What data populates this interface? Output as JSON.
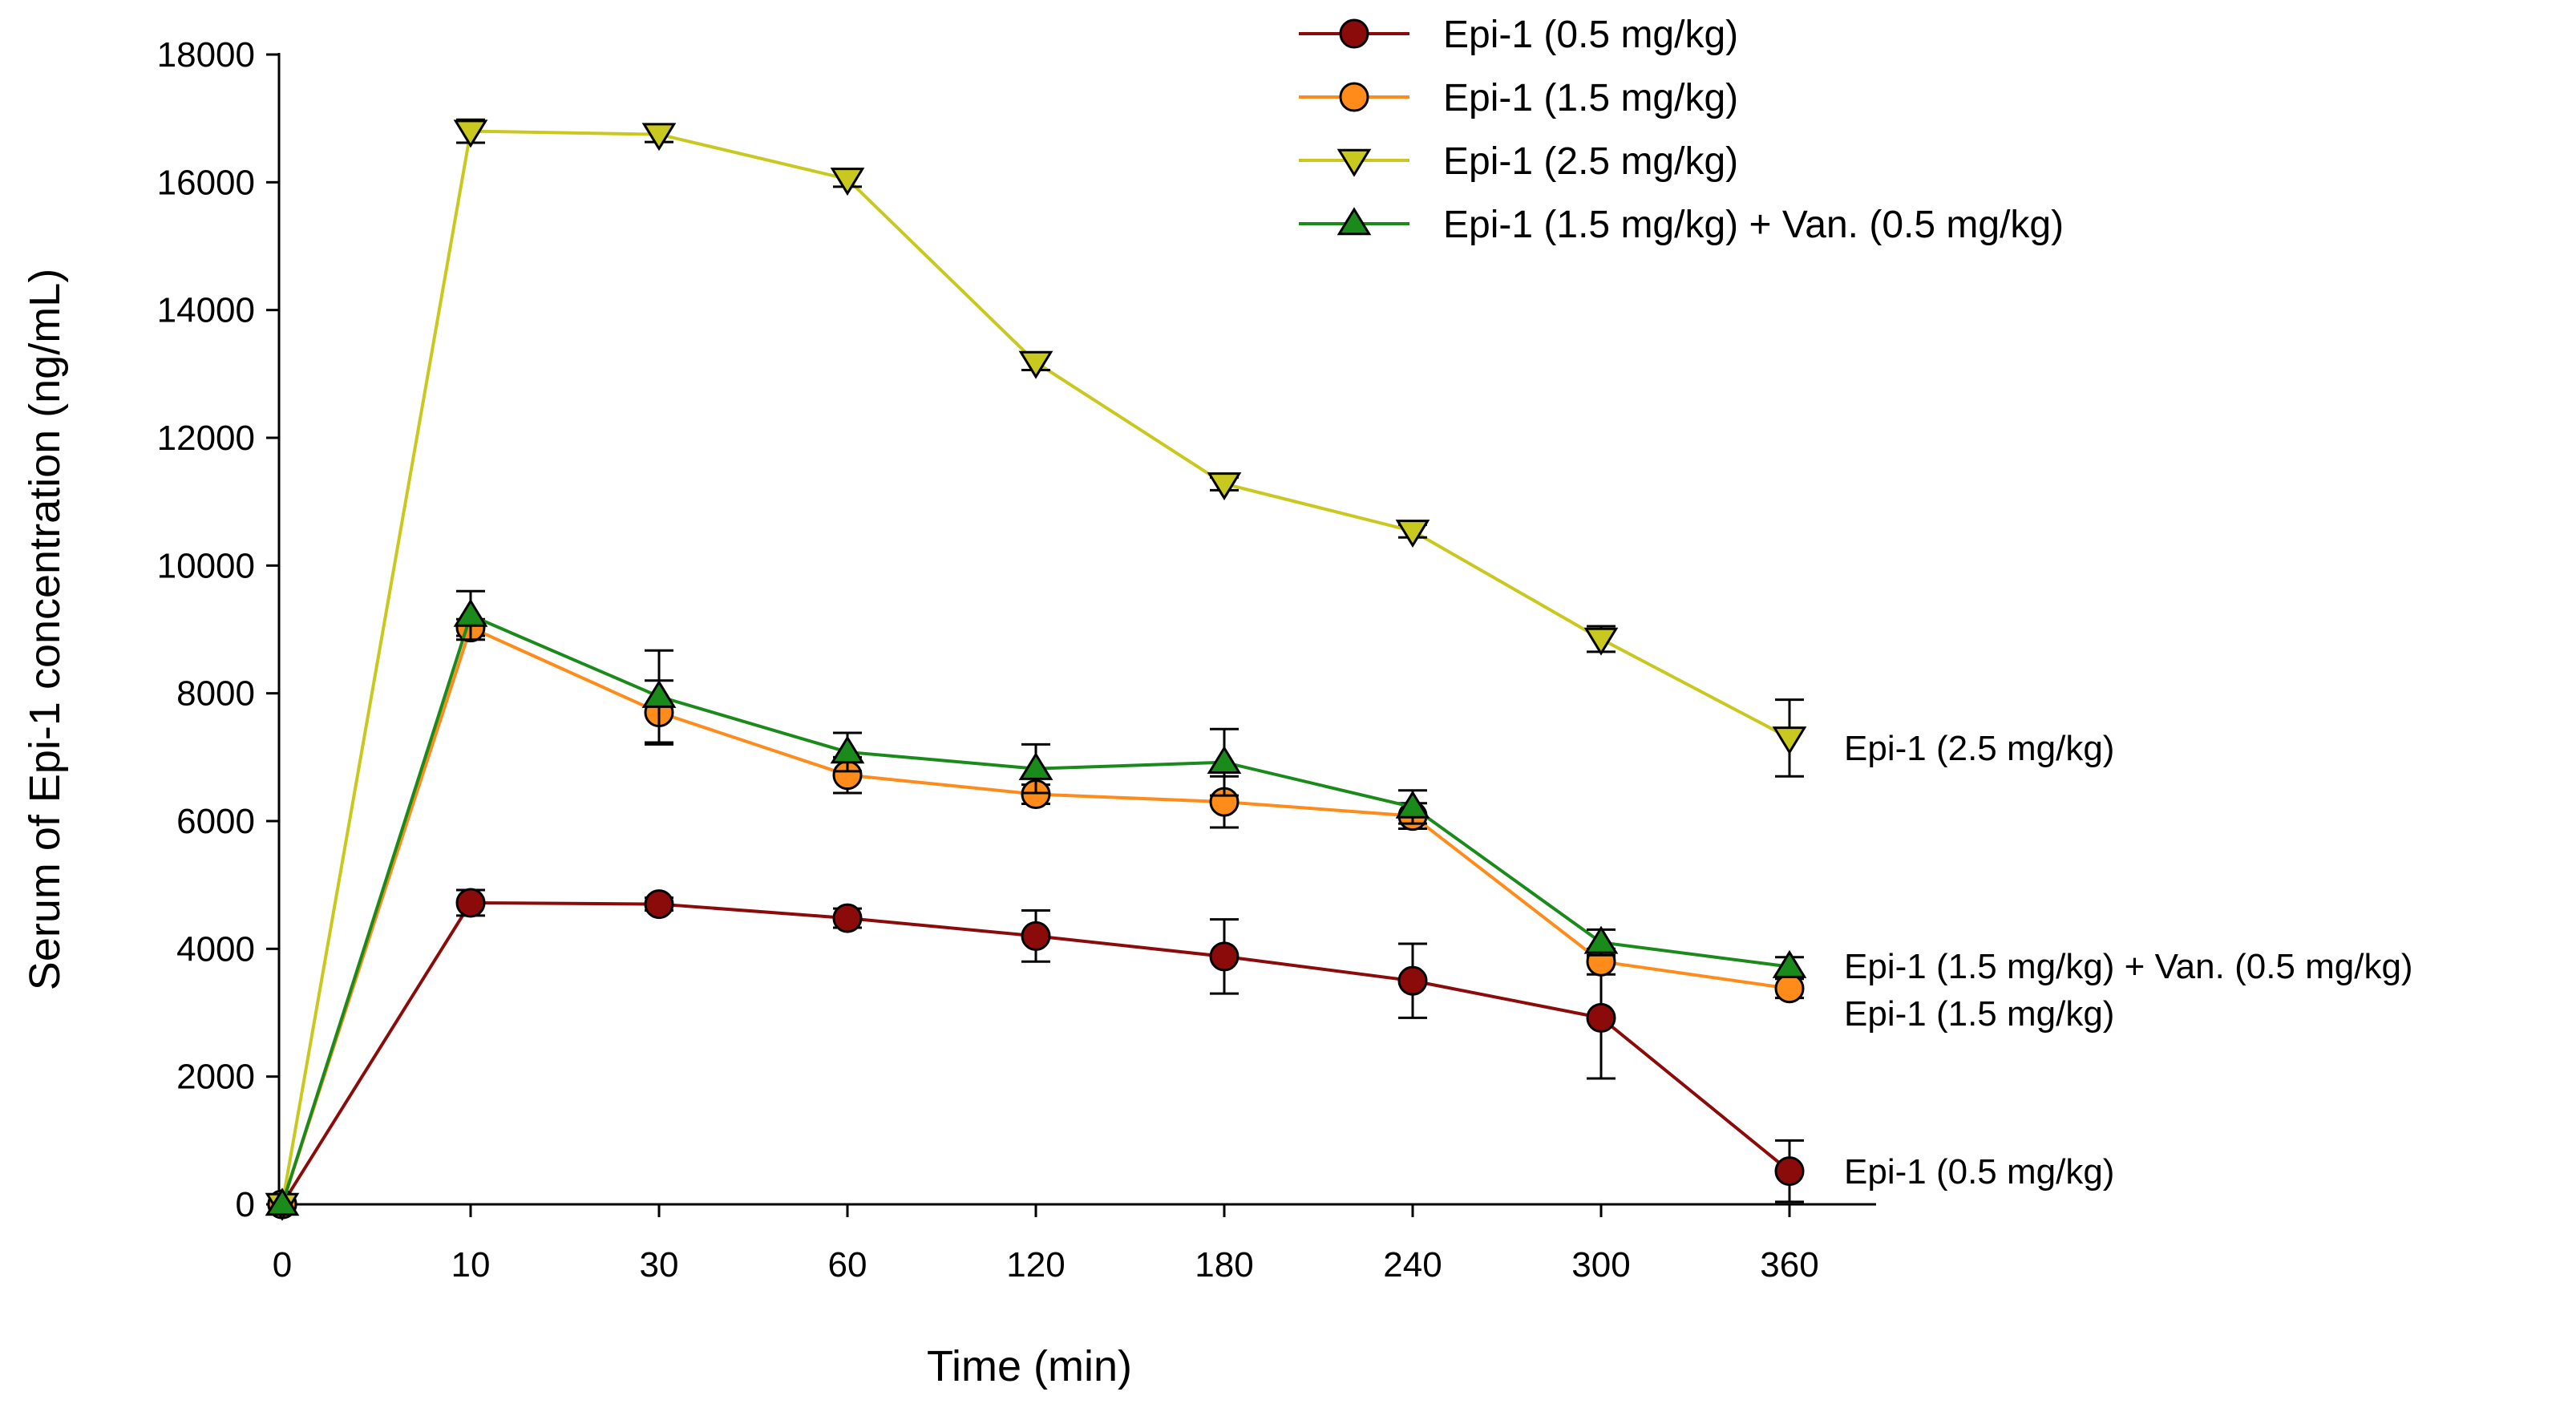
{
  "chart_data": {
    "type": "line",
    "title": "",
    "xlabel": "Time (min)",
    "ylabel": "Serum of Epi-1 concentration (ng/mL)",
    "categories": [
      "0",
      "10",
      "30",
      "60",
      "120",
      "180",
      "240",
      "300",
      "360"
    ],
    "ylim": [
      0,
      18000
    ],
    "yticks": [
      0,
      2000,
      4000,
      6000,
      8000,
      10000,
      12000,
      14000,
      16000,
      18000
    ],
    "grid": false,
    "legend": "top-right",
    "series": [
      {
        "name": "Epi-1 (0.5 mg/kg)",
        "color": "#8b0a0a",
        "marker": "circle",
        "values": [
          0,
          4720,
          4700,
          4480,
          4200,
          3880,
          3500,
          2920,
          520
        ],
        "errors": [
          0,
          200,
          100,
          150,
          400,
          580,
          580,
          950,
          480
        ],
        "end_label": "Epi-1 (0.5 mg/kg)"
      },
      {
        "name": "Epi-1 (1.5 mg/kg)",
        "color": "#ff8c1a",
        "marker": "circle",
        "values": [
          0,
          9030,
          7700,
          6720,
          6420,
          6300,
          6080,
          3800,
          3380
        ],
        "errors": [
          0,
          130,
          500,
          280,
          150,
          400,
          200,
          200,
          150
        ],
        "end_label": "Epi-1 (1.5 mg/kg)"
      },
      {
        "name": "Epi-1 (2.5 mg/kg)",
        "color": "#c8c81e",
        "marker": "triangle-down",
        "values": [
          0,
          16800,
          16750,
          16050,
          13180,
          11280,
          10540,
          8850,
          7300
        ],
        "errors": [
          0,
          180,
          120,
          120,
          120,
          100,
          100,
          200,
          600
        ],
        "end_label": "Epi-1 (2.5 mg/kg)"
      },
      {
        "name": "Epi-1 (1.5 mg/kg) + Van. (0.5 mg/kg)",
        "color": "#1a8a1a",
        "marker": "triangle-up",
        "values": [
          0,
          9220,
          7950,
          7080,
          6820,
          6920,
          6220,
          4100,
          3720
        ],
        "errors": [
          0,
          380,
          720,
          300,
          380,
          520,
          260,
          200,
          150
        ],
        "end_label": "Epi-1 (1.5 mg/kg) + Van. (0.5 mg/kg)"
      }
    ]
  }
}
